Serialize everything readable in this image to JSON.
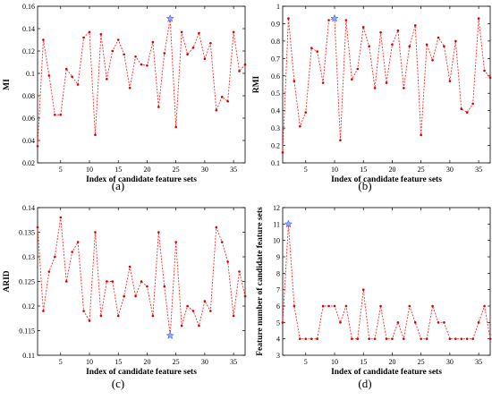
{
  "chart_data": [
    {
      "type": "line",
      "caption": "(a)",
      "xlabel": "Index of candidate feature sets",
      "ylabel": "MI",
      "xlim": [
        1,
        37
      ],
      "ylim": [
        0.02,
        0.16
      ],
      "xticks": [
        5,
        10,
        15,
        20,
        25,
        30,
        35
      ],
      "yticks": [
        0.02,
        0.04,
        0.06,
        0.08,
        0.1,
        0.12,
        0.14,
        0.16
      ],
      "ytick_labels": [
        "0.02",
        "0.04",
        "0.06",
        "0.08",
        "0.1",
        "0.12",
        "0.14",
        "0.16"
      ],
      "x": [
        1,
        2,
        3,
        4,
        5,
        6,
        7,
        8,
        9,
        10,
        11,
        12,
        13,
        14,
        15,
        16,
        17,
        18,
        19,
        20,
        21,
        22,
        23,
        24,
        25,
        26,
        27,
        28,
        29,
        30,
        31,
        32,
        33,
        34,
        35,
        36,
        37
      ],
      "values": [
        0.035,
        0.13,
        0.098,
        0.063,
        0.063,
        0.104,
        0.097,
        0.09,
        0.132,
        0.137,
        0.045,
        0.135,
        0.095,
        0.12,
        0.13,
        0.117,
        0.087,
        0.115,
        0.108,
        0.107,
        0.128,
        0.07,
        0.118,
        0.149,
        0.052,
        0.137,
        0.117,
        0.123,
        0.136,
        0.113,
        0.127,
        0.067,
        0.079,
        0.075,
        0.137,
        0.102,
        0.108
      ],
      "highlight": {
        "x": 24,
        "y": 0.149,
        "marker": "star"
      },
      "grid": false
    },
    {
      "type": "line",
      "caption": "(b)",
      "xlabel": "Index of candidate feature sets",
      "ylabel": "RMI",
      "xlim": [
        1,
        37
      ],
      "ylim": [
        0.1,
        1.0
      ],
      "xticks": [
        5,
        10,
        15,
        20,
        25,
        30,
        35
      ],
      "yticks": [
        0.1,
        0.2,
        0.3,
        0.4,
        0.5,
        0.6,
        0.7,
        0.8,
        0.9,
        1.0
      ],
      "ytick_labels": [
        "0.1",
        "0.2",
        "0.3",
        "0.4",
        "0.5",
        "0.6",
        "0.7",
        "0.8",
        "0.9",
        "1"
      ],
      "x": [
        1,
        2,
        3,
        4,
        5,
        6,
        7,
        8,
        9,
        10,
        11,
        12,
        13,
        14,
        15,
        16,
        17,
        18,
        19,
        20,
        21,
        22,
        23,
        24,
        25,
        26,
        27,
        28,
        29,
        30,
        31,
        32,
        33,
        34,
        35,
        36,
        37
      ],
      "values": [
        0.16,
        0.93,
        0.57,
        0.31,
        0.39,
        0.76,
        0.74,
        0.56,
        0.92,
        0.93,
        0.23,
        0.92,
        0.58,
        0.64,
        0.88,
        0.77,
        0.53,
        0.85,
        0.56,
        0.78,
        0.86,
        0.53,
        0.77,
        0.89,
        0.26,
        0.78,
        0.69,
        0.82,
        0.77,
        0.57,
        0.8,
        0.41,
        0.39,
        0.44,
        0.93,
        0.63,
        0.59
      ],
      "highlight": {
        "x": 10,
        "y": 0.93,
        "marker": "star"
      },
      "grid": false
    },
    {
      "type": "line",
      "caption": "(c)",
      "xlabel": "Index of candidate feature sets",
      "ylabel": "ARID",
      "xlim": [
        1,
        37
      ],
      "ylim": [
        0.11,
        0.14
      ],
      "xticks": [
        5,
        10,
        15,
        20,
        25,
        30,
        35
      ],
      "yticks": [
        0.11,
        0.115,
        0.12,
        0.125,
        0.13,
        0.135,
        0.14
      ],
      "ytick_labels": [
        "0.11",
        "0.115",
        "0.12",
        "0.125",
        "0.13",
        "0.135",
        "0.14"
      ],
      "x": [
        1,
        2,
        3,
        4,
        5,
        6,
        7,
        8,
        9,
        10,
        11,
        12,
        13,
        14,
        15,
        16,
        17,
        18,
        19,
        20,
        21,
        22,
        23,
        24,
        25,
        26,
        27,
        28,
        29,
        30,
        31,
        32,
        33,
        34,
        35,
        36,
        37
      ],
      "values": [
        0.136,
        0.119,
        0.127,
        0.13,
        0.138,
        0.125,
        0.131,
        0.133,
        0.119,
        0.117,
        0.135,
        0.118,
        0.125,
        0.125,
        0.118,
        0.122,
        0.128,
        0.122,
        0.125,
        0.124,
        0.118,
        0.135,
        0.124,
        0.114,
        0.133,
        0.116,
        0.12,
        0.119,
        0.116,
        0.121,
        0.119,
        0.136,
        0.133,
        0.129,
        0.118,
        0.127,
        0.122
      ],
      "highlight": {
        "x": 24,
        "y": 0.114,
        "marker": "star"
      },
      "grid": false
    },
    {
      "type": "line",
      "caption": "(d)",
      "xlabel": "Index of candidate feature sets",
      "ylabel": "Feature number of candidate feature sets",
      "xlim": [
        1,
        37
      ],
      "ylim": [
        3,
        12
      ],
      "xticks": [
        5,
        10,
        15,
        20,
        25,
        30,
        35
      ],
      "yticks": [
        3,
        4,
        5,
        6,
        7,
        8,
        9,
        10,
        11,
        12
      ],
      "ytick_labels": [
        "3",
        "4",
        "5",
        "6",
        "7",
        "8",
        "9",
        "10",
        "11",
        "12"
      ],
      "x": [
        1,
        2,
        3,
        4,
        5,
        6,
        7,
        8,
        9,
        10,
        11,
        12,
        13,
        14,
        15,
        16,
        17,
        18,
        19,
        20,
        21,
        22,
        23,
        24,
        25,
        26,
        27,
        28,
        29,
        30,
        31,
        32,
        33,
        34,
        35,
        36,
        37
      ],
      "values": [
        5,
        11,
        6,
        4,
        4,
        4,
        4,
        6,
        6,
        6,
        5,
        6,
        4,
        4,
        7,
        4,
        4,
        6,
        4,
        4,
        5,
        4,
        6,
        5,
        4,
        4,
        6,
        5,
        5,
        4,
        4,
        4,
        4,
        4,
        5,
        6,
        4
      ],
      "highlight": {
        "x": 2,
        "y": 11,
        "marker": "star"
      },
      "grid": false
    }
  ]
}
